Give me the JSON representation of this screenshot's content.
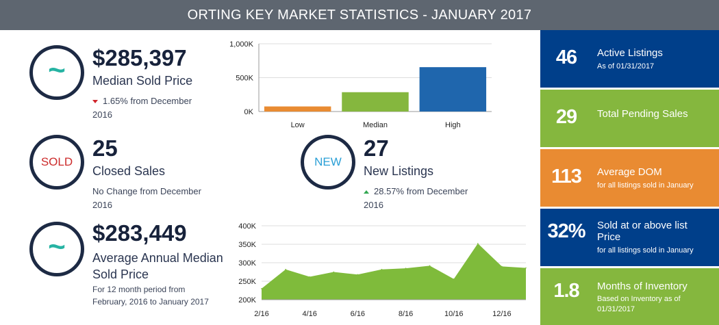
{
  "header": {
    "title": "ORTING KEY MARKET STATISTICS - JANUARY 2017"
  },
  "colors": {
    "navy": "#003f8a",
    "green": "#85b73e",
    "orange": "#e98b32",
    "bar_low": "#e98b32",
    "bar_median": "#85b73e",
    "bar_high": "#1f66ad",
    "area": "#7fbb3b",
    "down": "#d0242b",
    "up": "#33a852"
  },
  "stats": {
    "median_sold": {
      "icon": "tilde-icon",
      "value": "$285,397",
      "label": "Median Sold Price",
      "change": "1.65% from December",
      "change_line2": "2016",
      "direction": "down"
    },
    "closed_sales": {
      "icon_text": "SOLD",
      "value": "25",
      "label": "Closed Sales",
      "change": "No Change from December",
      "change_line2": "2016"
    },
    "new_listings": {
      "icon_text": "NEW",
      "value": "27",
      "label": "New Listings",
      "change": "28.57% from December",
      "change_line2": "2016",
      "direction": "up"
    },
    "avg_annual": {
      "icon": "tilde-icon",
      "value": "$283,449",
      "label": "Average Annual Median",
      "label_line2": "Sold Price",
      "note": "For 12 month period from",
      "note_line2": "February, 2016 to January 2017"
    }
  },
  "chart_data": [
    {
      "type": "bar",
      "categories": [
        "Low",
        "Median",
        "High"
      ],
      "values": [
        75000,
        285397,
        655000
      ],
      "yticks": [
        "0K",
        "500K",
        "1,000K"
      ],
      "ylim": [
        0,
        1000000
      ],
      "grid": true
    },
    {
      "type": "area",
      "x": [
        "2/16",
        "3/16",
        "4/16",
        "5/16",
        "6/16",
        "7/16",
        "8/16",
        "9/16",
        "10/16",
        "11/16",
        "12/16",
        "1/17"
      ],
      "values": [
        230000,
        282000,
        262000,
        275000,
        268000,
        282000,
        285000,
        292000,
        256000,
        352000,
        290000,
        286000
      ],
      "xticks": [
        "2/16",
        "4/16",
        "6/16",
        "8/16",
        "10/16",
        "12/16"
      ],
      "yticks": [
        "200K",
        "250K",
        "300K",
        "350K",
        "400K"
      ],
      "ylim": [
        200000,
        400000
      ],
      "grid": true
    }
  ],
  "tiles": [
    {
      "number": "46",
      "title": "Active Listings",
      "sub": "As of 01/31/2017",
      "color": "#003f8a"
    },
    {
      "number": "29",
      "title": "Total Pending Sales",
      "sub": "",
      "color": "#85b73e"
    },
    {
      "number": "113",
      "title": "Average DOM",
      "sub": "for all listings sold in January",
      "color": "#e98b32"
    },
    {
      "number": "32%",
      "title": "Sold at or above list",
      "title2": "Price",
      "sub": "for all listings sold in January",
      "color": "#003f8a"
    },
    {
      "number": "1.8",
      "title": "Months of Inventory",
      "sub": "Based on Inventory as of",
      "sub2": "01/31/2017",
      "color": "#85b73e"
    }
  ]
}
